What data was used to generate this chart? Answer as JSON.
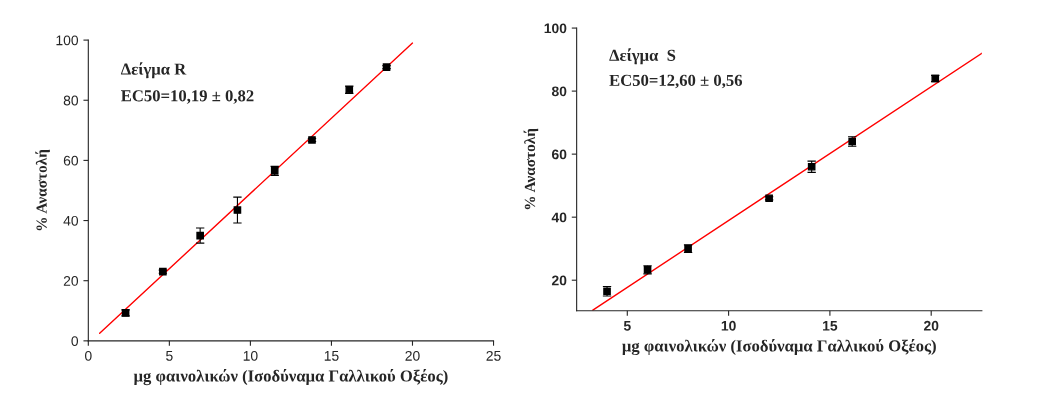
{
  "chart_data": [
    {
      "type": "scatter",
      "xlabel": "μg φαινολικών (Ισοδύναμα Γαλλικού Οξέος)",
      "ylabel": "% Αναστολή",
      "xlim": [
        0,
        25
      ],
      "ylim": [
        0,
        100
      ],
      "xticks": [
        0,
        5,
        10,
        15,
        20,
        25
      ],
      "yticks": [
        0,
        20,
        40,
        60,
        80,
        100
      ],
      "grid": false,
      "annotations": [
        "Δείγμα R",
        "EC50=10,19 ± 0,82"
      ],
      "series": [
        {
          "marker": "square",
          "color": "#000000",
          "x": [
            2.3,
            4.6,
            6.9,
            9.2,
            11.5,
            13.8,
            16.1,
            18.4
          ],
          "values": [
            9.3,
            23,
            35,
            43.5,
            56.5,
            66.8,
            83.5,
            91
          ],
          "errors": [
            1,
            0.5,
            2.5,
            4.3,
            1.5,
            0.5,
            1.2,
            0.5
          ]
        },
        {
          "type": "line",
          "color": "#ff0000",
          "x": [
            0.7,
            20
          ],
          "values": [
            2.5,
            99
          ]
        }
      ]
    },
    {
      "type": "scatter",
      "xlabel": "μg φαινολικών (Ισοδύναμα Γαλλικού Οξέος)",
      "ylabel": "% Αναστολή",
      "xlim": [
        2.5,
        22.5
      ],
      "ylim": [
        10.3,
        100
      ],
      "xticks": [
        5,
        10,
        15,
        20
      ],
      "yticks": [
        20,
        40,
        60,
        80,
        100
      ],
      "grid": false,
      "annotations": [
        "Δείγμα  S",
        "EC50=12,60 ± 0,56"
      ],
      "series": [
        {
          "marker": "square",
          "color": "#000000",
          "x": [
            4,
            6,
            8,
            12,
            14.1,
            16.1,
            20.2
          ],
          "values": [
            16.5,
            23.3,
            30,
            46,
            56,
            64,
            84
          ],
          "errors": [
            1.5,
            1.3,
            1.2,
            0.5,
            1.8,
            1.5,
            1
          ]
        },
        {
          "type": "line",
          "color": "#ff0000",
          "x": [
            3.3,
            22.5
          ],
          "values": [
            10.5,
            92
          ]
        }
      ]
    }
  ]
}
